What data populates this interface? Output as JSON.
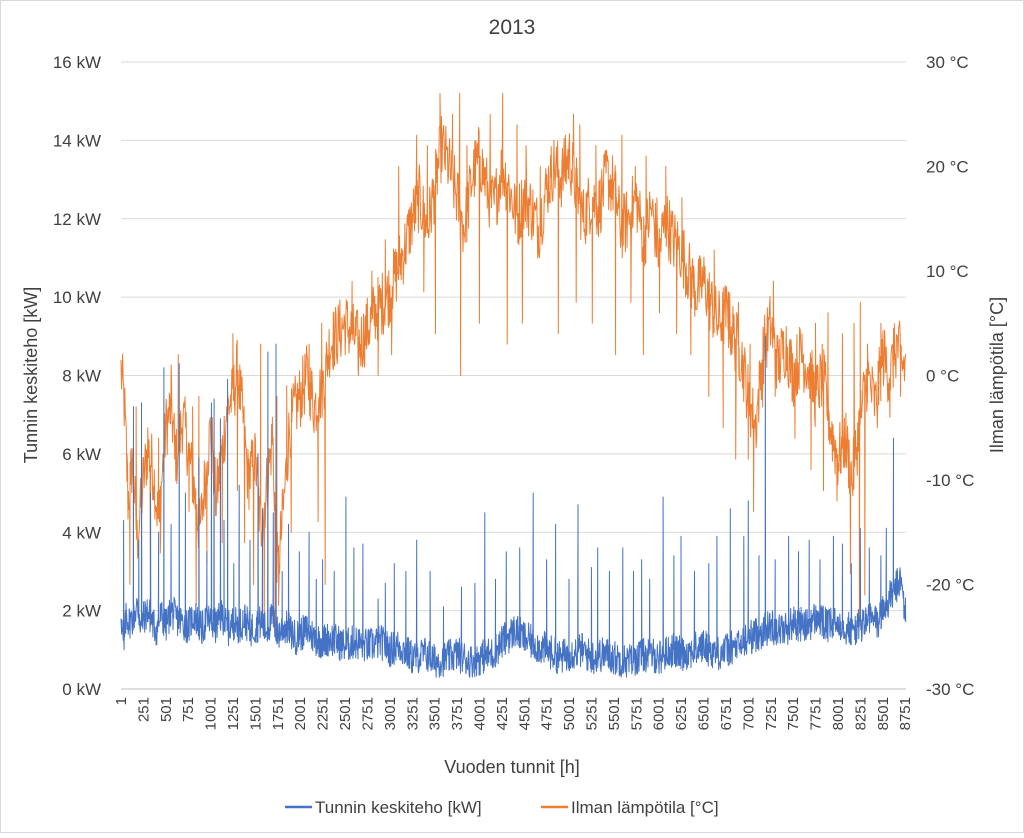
{
  "chart_data": {
    "type": "line",
    "title": "2013",
    "xlabel": "Vuoden tunnit [h]",
    "ylabel_left": "Tunnin keskiteho [kW]",
    "ylabel_right": "Ilman lämpötila [°C]",
    "x_range": [
      1,
      8760
    ],
    "ylim_left": [
      0,
      16
    ],
    "ylim_right": [
      -30,
      30
    ],
    "grid": true,
    "legend_position": "bottom",
    "x_tick_values": [
      1,
      251,
      501,
      751,
      1001,
      1251,
      1501,
      1751,
      2001,
      2251,
      2501,
      2751,
      3001,
      3251,
      3501,
      3751,
      4001,
      4251,
      4501,
      4751,
      5001,
      5251,
      5501,
      5751,
      6001,
      6251,
      6501,
      6751,
      7001,
      7251,
      7501,
      7751,
      8001,
      8251,
      8501,
      8751
    ],
    "x_tick_labels": [
      "1",
      "251",
      "501",
      "751",
      "1001",
      "1251",
      "1501",
      "1751",
      "2001",
      "2251",
      "2501",
      "2751",
      "3001",
      "3251",
      "3501",
      "3751",
      "4001",
      "4251",
      "4501",
      "4751",
      "5001",
      "5251",
      "5501",
      "5751",
      "6001",
      "6251",
      "6501",
      "6751",
      "7001",
      "7251",
      "7501",
      "7751",
      "8001",
      "8251",
      "8501",
      "8751"
    ],
    "y_left_tick_values": [
      0,
      2,
      4,
      6,
      8,
      10,
      12,
      14,
      16
    ],
    "y_left_tick_labels": [
      "0 kW",
      "2 kW",
      "4 kW",
      "6 kW",
      "8 kW",
      "10 kW",
      "12 kW",
      "14 kW",
      "16 kW"
    ],
    "y_right_tick_values": [
      -30,
      -20,
      -10,
      0,
      10,
      20,
      30
    ],
    "y_right_tick_labels": [
      "-30 °C",
      "-20 °C",
      "-10 °C",
      "0 °C",
      "10 °C",
      "20 °C",
      "30 °C"
    ],
    "series": [
      {
        "name": "Tunnin keskiteho [kW]",
        "axis": "left",
        "color": "#4472c4",
        "x": [
          1,
          30,
          60,
          90,
          130,
          180,
          230,
          251,
          300,
          350,
          400,
          450,
          501,
          560,
          620,
          690,
          751,
          820,
          900,
          960,
          1001,
          1060,
          1130,
          1190,
          1251,
          1320,
          1380,
          1440,
          1501,
          1560,
          1620,
          1690,
          1751,
          1820,
          1880,
          1950,
          2001,
          2080,
          2160,
          2251,
          2330,
          2420,
          2501,
          2600,
          2751,
          2900,
          3001,
          3100,
          3251,
          3400,
          3501,
          3650,
          3751,
          3900,
          4001,
          4150,
          4251,
          4400,
          4501,
          4650,
          4751,
          4900,
          5001,
          5150,
          5251,
          5400,
          5501,
          5650,
          5751,
          5900,
          6001,
          6150,
          6251,
          6400,
          6501,
          6650,
          6751,
          6900,
          7001,
          7100,
          7251,
          7400,
          7501,
          7650,
          7751,
          7900,
          8001,
          8150,
          8251,
          8350,
          8451,
          8501,
          8600,
          8700,
          8760
        ],
        "y": [
          2.0,
          1.0,
          1.9,
          1.7,
          1.8,
          2.1,
          1.6,
          1.8,
          2.0,
          1.7,
          1.5,
          1.9,
          1.6,
          2.0,
          1.8,
          1.7,
          1.6,
          1.9,
          1.5,
          1.8,
          1.7,
          1.6,
          1.9,
          1.5,
          1.7,
          1.6,
          1.8,
          1.5,
          1.6,
          1.7,
          1.5,
          1.8,
          1.4,
          1.6,
          1.5,
          1.3,
          1.4,
          1.5,
          1.3,
          1.2,
          1.3,
          1.2,
          1.1,
          1.2,
          1.1,
          1.2,
          1.0,
          1.1,
          0.8,
          0.9,
          0.7,
          0.8,
          0.9,
          0.7,
          0.8,
          0.9,
          1.2,
          1.5,
          1.3,
          1.1,
          1.0,
          0.8,
          0.9,
          1.0,
          0.8,
          0.9,
          0.8,
          0.7,
          0.8,
          0.9,
          0.8,
          1.0,
          0.9,
          1.0,
          1.1,
          0.9,
          1.0,
          1.1,
          1.3,
          1.4,
          1.6,
          1.5,
          1.7,
          1.6,
          1.8,
          1.6,
          1.7,
          1.5,
          1.6,
          1.8,
          1.7,
          2.0,
          2.4,
          2.8,
          1.8
        ],
        "spikes_x": [
          30,
          140,
          200,
          230,
          330,
          420,
          480,
          560,
          650,
          720,
          870,
          960,
          1010,
          1040,
          1110,
          1150,
          1190,
          1260,
          1320,
          1440,
          1530,
          1580,
          1640,
          1700,
          1730,
          1800,
          1870,
          1990,
          2100,
          2180,
          2250,
          2380,
          2510,
          2600,
          2700,
          2870,
          2950,
          3050,
          3180,
          3300,
          3450,
          3600,
          3800,
          3950,
          4060,
          4180,
          4300,
          4450,
          4600,
          4750,
          4850,
          5000,
          5100,
          5250,
          5320,
          5450,
          5600,
          5720,
          5810,
          5900,
          6050,
          6170,
          6250,
          6400,
          6560,
          6650,
          6800,
          6950,
          7000,
          7120,
          7190,
          7300,
          7450,
          7560,
          7680,
          7800,
          7950,
          8050,
          8150,
          8250,
          8350,
          8480,
          8540,
          8620
        ],
        "spikes_y": [
          4.3,
          7.2,
          3.8,
          7.3,
          5.0,
          4.0,
          8.2,
          4.2,
          8.3,
          5.0,
          5.9,
          3.5,
          7.3,
          7.4,
          6.9,
          4.3,
          7.9,
          3.2,
          5.2,
          3.8,
          6.0,
          4.6,
          8.6,
          4.5,
          8.8,
          3.0,
          4.2,
          3.5,
          4.0,
          2.8,
          3.3,
          3.0,
          4.9,
          3.6,
          3.7,
          2.3,
          2.7,
          3.2,
          3.0,
          3.8,
          3.0,
          2.1,
          2.6,
          2.7,
          4.5,
          2.8,
          3.5,
          3.6,
          5.0,
          3.3,
          4.2,
          2.8,
          4.7,
          3.1,
          3.6,
          3.0,
          3.6,
          3.0,
          3.3,
          2.8,
          4.9,
          3.4,
          3.9,
          3.0,
          3.2,
          3.9,
          4.6,
          3.9,
          4.8,
          3.4,
          9.0,
          3.3,
          3.9,
          3.5,
          3.8,
          3.3,
          3.9,
          3.7,
          3.2,
          4.1,
          3.6,
          3.4,
          4.1,
          6.4
        ]
      },
      {
        "name": "Ilman lämpötila [°C]",
        "axis": "right",
        "color": "#ed7d31",
        "x": [
          1,
          40,
          80,
          130,
          180,
          251,
          300,
          360,
          420,
          501,
          560,
          620,
          690,
          751,
          820,
          880,
          950,
          1001,
          1060,
          1120,
          1190,
          1251,
          1300,
          1360,
          1420,
          1501,
          1560,
          1620,
          1690,
          1751,
          1820,
          1880,
          1950,
          2001,
          2080,
          2160,
          2251,
          2330,
          2420,
          2501,
          2580,
          2660,
          2751,
          2830,
          2920,
          3001,
          3080,
          3160,
          3251,
          3330,
          3420,
          3501,
          3580,
          3660,
          3751,
          3830,
          3920,
          4001,
          4080,
          4160,
          4251,
          4330,
          4420,
          4501,
          4580,
          4660,
          4751,
          4830,
          4920,
          5001,
          5080,
          5160,
          5251,
          5330,
          5420,
          5501,
          5580,
          5660,
          5751,
          5830,
          5920,
          6001,
          6080,
          6160,
          6251,
          6330,
          6420,
          6501,
          6580,
          6660,
          6751,
          6830,
          6920,
          7001,
          7080,
          7160,
          7251,
          7330,
          7420,
          7501,
          7580,
          7660,
          7751,
          7830,
          7920,
          8001,
          8080,
          8160,
          8251,
          8330,
          8420,
          8501,
          8580,
          8660,
          8720,
          8760
        ],
        "y": [
          0.5,
          -3.0,
          -12.0,
          -8.0,
          -16.0,
          -10.0,
          -7.0,
          -9.0,
          -14.0,
          -5.0,
          -3.0,
          -8.0,
          -4.0,
          -7.0,
          -11.0,
          -15.0,
          -9.0,
          -5.0,
          -12.0,
          -8.0,
          -3.0,
          -2.0,
          0.5,
          -4.0,
          -10.0,
          -8.0,
          -15.0,
          -11.0,
          -6.0,
          -19.0,
          -12.0,
          -5.0,
          -3.0,
          -2.0,
          0.0,
          -3.0,
          -1.0,
          3.0,
          4.0,
          5.0,
          4.0,
          3.0,
          4.5,
          6.0,
          7.0,
          8.0,
          10.0,
          12.0,
          15.0,
          17.0,
          14.0,
          18.0,
          22.0,
          20.0,
          17.0,
          14.0,
          19.0,
          21.0,
          18.0,
          16.0,
          20.0,
          18.0,
          15.0,
          17.0,
          16.0,
          14.0,
          18.0,
          20.0,
          19.0,
          21.0,
          18.0,
          15.0,
          17.0,
          16.0,
          19.0,
          18.0,
          14.0,
          15.0,
          17.0,
          13.0,
          16.0,
          12.0,
          15.0,
          13.0,
          12.0,
          10.0,
          8.0,
          9.0,
          7.0,
          5.0,
          6.0,
          4.0,
          2.0,
          -2.0,
          -5.0,
          2.0,
          5.0,
          1.0,
          3.0,
          0.0,
          2.0,
          1.0,
          -2.0,
          0.0,
          -5.0,
          -8.0,
          -6.0,
          -10.0,
          -4.0,
          0.0,
          -3.0,
          2.0,
          0.0,
          3.0,
          1.0,
          1.0
        ],
        "spikes_x": [
          60,
          170,
          300,
          420,
          560,
          640,
          800,
          870,
          1020,
          1180,
          1250,
          1430,
          1560,
          1690,
          1740,
          1850,
          1990,
          2100,
          2240,
          2370,
          2580,
          2800,
          2950,
          3100,
          3300,
          3420,
          3560,
          3700,
          3780,
          3860,
          3970,
          4120,
          4260,
          4420,
          4520,
          4680,
          4790,
          4960,
          5050,
          5120,
          5300,
          5430,
          5590,
          5740,
          5860,
          5980,
          6080,
          6260,
          6460,
          6620,
          6780,
          6890,
          7020,
          7210,
          7280,
          7430,
          7600,
          7750,
          7890,
          8050,
          8180,
          8250,
          8330,
          8480,
          8620
        ],
        "low_x": [
          100,
          330,
          440,
          600,
          760,
          840,
          960,
          1130,
          1300,
          1380,
          1480,
          1600,
          1720,
          1760,
          1900,
          2200,
          2280,
          2650,
          2870,
          3020,
          3380,
          3510,
          3790,
          4000,
          4310,
          4480,
          4880,
          5080,
          5260,
          5520,
          5690,
          5830,
          6010,
          6200,
          6360,
          6560,
          6720,
          6860,
          7000,
          7060,
          7160,
          7300,
          7520,
          7700,
          7840,
          7990,
          8140,
          8240,
          8300,
          8440,
          8580,
          8700
        ],
        "low_y": [
          -20,
          -24,
          -17,
          -8,
          -13,
          -22,
          -18,
          -16,
          -11,
          -16,
          -20,
          -23,
          -25,
          -22,
          -15,
          -14,
          -20,
          0,
          0,
          2,
          8,
          4,
          0,
          5,
          3,
          5,
          4,
          7,
          5,
          2,
          7,
          2,
          6,
          4,
          2,
          -2,
          -5,
          -8,
          -8,
          -13,
          -3,
          -2,
          -6,
          -9,
          -11,
          -12,
          -19,
          -24,
          -21,
          -5,
          -4,
          -2
        ],
        "spikes_y": [
          -5.0,
          -3.0,
          -5.0,
          -6.0,
          1.0,
          2.0,
          -3.0,
          -2.0,
          -4.0,
          -3.0,
          4.0,
          -8.0,
          3.0,
          -4.0,
          -2.0,
          -1.0,
          -1.0,
          3.0,
          5.0,
          6.0,
          9.0,
          10.0,
          13.0,
          20.0,
          23.0,
          22.0,
          27.0,
          25.0,
          27.0,
          22.0,
          21.0,
          25.0,
          27.0,
          24.0,
          22.0,
          20.0,
          19.0,
          23.0,
          25.0,
          24.0,
          22.0,
          21.0,
          23.0,
          20.0,
          21.0,
          17.0,
          20.0,
          17.0,
          11.0,
          12.0,
          8.0,
          7.0,
          3.0,
          5.0,
          9.0,
          2.0,
          4.0,
          5.0,
          6.0,
          4.0,
          5.0,
          7.0,
          3.0,
          5.0,
          4.5
        ]
      }
    ]
  }
}
